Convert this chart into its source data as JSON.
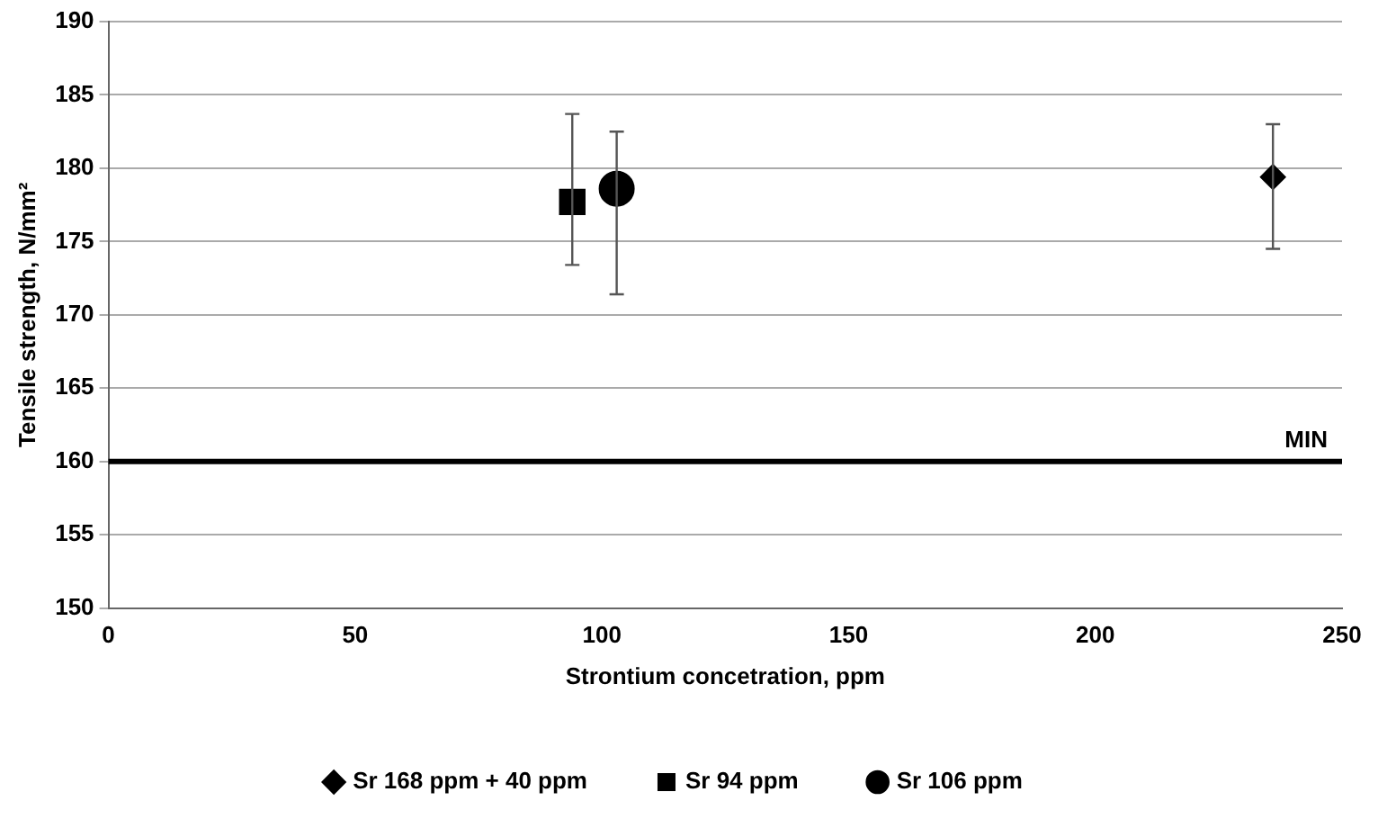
{
  "chart_data": {
    "type": "scatter",
    "xlabel": "Strontium concetration, ppm",
    "ylabel": "Tensile strength, N/mm²",
    "xlim": [
      0,
      250
    ],
    "xticks": [
      0,
      50,
      100,
      150,
      200,
      250
    ],
    "ylim": [
      150,
      190
    ],
    "yticks": [
      150,
      155,
      160,
      165,
      170,
      175,
      180,
      185,
      190
    ],
    "grid": "y",
    "legend": "bottom",
    "series": [
      {
        "name": "Sr 168 ppm + 40 ppm",
        "color": "#000000",
        "marker": "diamond",
        "x": [
          236
        ],
        "values": [
          179.4
        ],
        "errors": [
          [
            174.5,
            183
          ]
        ]
      },
      {
        "name": "Sr 94 ppm",
        "color": "#000000",
        "marker": "square",
        "x": [
          94
        ],
        "values": [
          177.7
        ],
        "errors": [
          [
            173.4,
            183.7
          ]
        ]
      },
      {
        "name": "Sr 106 ppm",
        "color": "#000000",
        "marker": "circle",
        "x": [
          103
        ],
        "values": [
          178.6
        ],
        "errors": [
          [
            171.4,
            182.5
          ]
        ]
      }
    ],
    "ref_lines": [
      {
        "axis": "y",
        "value": 160,
        "label": "MIN",
        "color": "#000000"
      }
    ]
  }
}
